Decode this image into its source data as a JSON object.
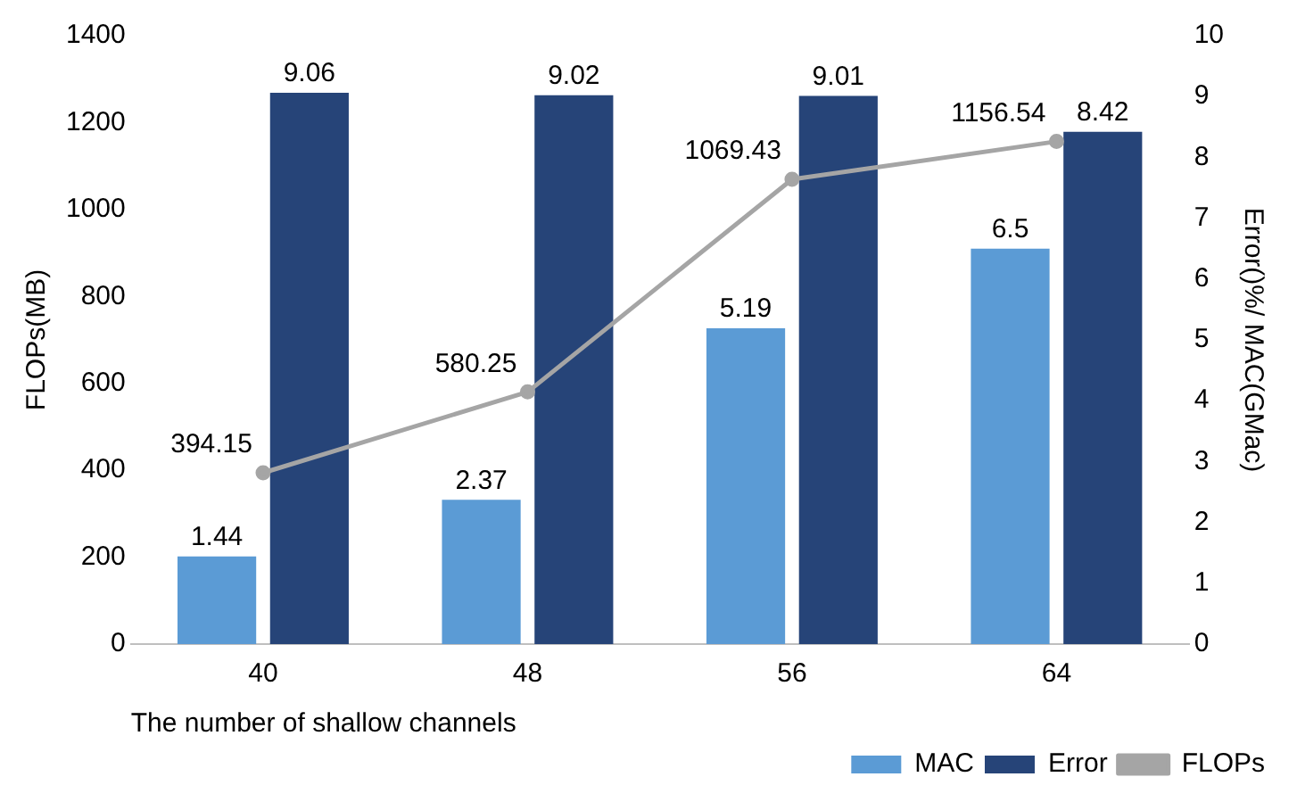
{
  "chart_data": {
    "type": "bar",
    "xlabel": "The number of shallow channels",
    "ylabel": "FLOPs(MB)",
    "y2label": "Error()%/ MAC(GMac)",
    "categories": [
      "40",
      "48",
      "56",
      "64"
    ],
    "series": [
      {
        "name": "MAC",
        "axis": "y2",
        "color": "#5b9bd5",
        "values": [
          1.44,
          2.37,
          5.19,
          6.5
        ]
      },
      {
        "name": "Error",
        "axis": "y2",
        "color": "#264478",
        "values": [
          9.06,
          9.02,
          9.01,
          8.42
        ]
      },
      {
        "name": "FLOPs",
        "type": "line",
        "axis": "y",
        "color": "#a5a5a5",
        "values": [
          394.15,
          580.25,
          1069.43,
          1156.54
        ]
      }
    ],
    "ylim": [
      0,
      1400
    ],
    "yticks": [
      0,
      200,
      400,
      600,
      800,
      1000,
      1200,
      1400
    ],
    "y2lim": [
      0,
      10
    ],
    "y2ticks": [
      0,
      1,
      2,
      3,
      4,
      5,
      6,
      7,
      8,
      9,
      10
    ],
    "data_labels": true,
    "grid": false,
    "legend": "bottom right",
    "marker": "circle",
    "line_style": "solid"
  }
}
